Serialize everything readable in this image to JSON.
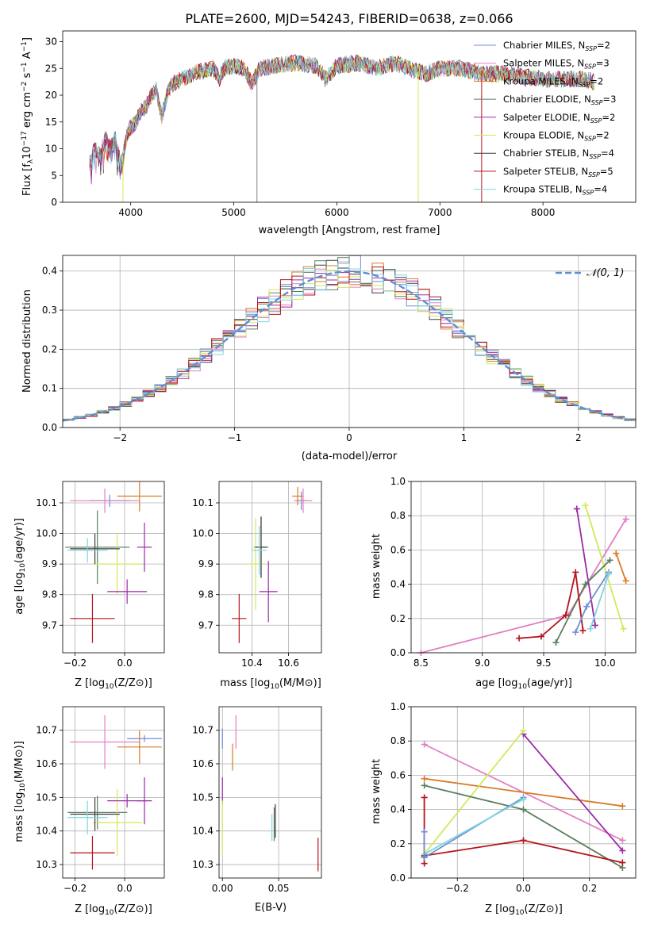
{
  "title": "PLATE=2600, MJD=54243, FIBERID=0638, z=0.066",
  "chart_data": [
    {
      "id": "spectrum",
      "type": "line",
      "xlabel": "wavelength [Angstrom, rest frame]",
      "ylabel": "Flux [f_λ 10^-17 erg cm^-2 s^-1 A^-1]",
      "xlim": [
        3340,
        8900
      ],
      "ylim": [
        0,
        32
      ],
      "xticks": [
        4000,
        5000,
        6000,
        7000,
        8000
      ],
      "yticks": [
        0,
        5,
        10,
        15,
        20,
        25,
        30
      ],
      "grid": false,
      "legend": "upper right",
      "anchors": [
        [
          3600,
          7
        ],
        [
          3650,
          10
        ],
        [
          3700,
          9
        ],
        [
          3760,
          12
        ],
        [
          3800,
          10
        ],
        [
          3850,
          12
        ],
        [
          3900,
          7
        ],
        [
          3930,
          9
        ],
        [
          3970,
          13
        ],
        [
          4000,
          14
        ],
        [
          4050,
          15
        ],
        [
          4100,
          17
        ],
        [
          4150,
          18
        ],
        [
          4200,
          20
        ],
        [
          4250,
          21
        ],
        [
          4300,
          16
        ],
        [
          4350,
          20
        ],
        [
          4400,
          22
        ],
        [
          4500,
          23
        ],
        [
          4600,
          24
        ],
        [
          4700,
          24.5
        ],
        [
          4800,
          25
        ],
        [
          4860,
          23
        ],
        [
          4900,
          25
        ],
        [
          5000,
          25.5
        ],
        [
          5100,
          25
        ],
        [
          5175,
          22
        ],
        [
          5250,
          25
        ],
        [
          5400,
          25.5
        ],
        [
          5600,
          26
        ],
        [
          5800,
          25.5
        ],
        [
          5890,
          23
        ],
        [
          6000,
          25.5
        ],
        [
          6200,
          26
        ],
        [
          6400,
          25
        ],
        [
          6563,
          26
        ],
        [
          6700,
          25
        ],
        [
          6870,
          24
        ],
        [
          7000,
          25
        ],
        [
          7200,
          25
        ],
        [
          7400,
          24
        ],
        [
          7600,
          24
        ],
        [
          7800,
          23.5
        ],
        [
          8000,
          23
        ],
        [
          8200,
          23
        ],
        [
          8400,
          23
        ],
        [
          8500,
          22.5
        ]
      ],
      "spikes": [
        {
          "x": 3925,
          "y": 0,
          "color": "#d4e85a"
        },
        {
          "x": 5225,
          "y": 0,
          "color": "#7f7f7f"
        },
        {
          "x": 6790,
          "y": 0,
          "color": "#d4e85a"
        },
        {
          "x": 7405,
          "y": 0,
          "color": "#b5131a"
        }
      ],
      "series": [
        {
          "name": "Chabrier MILES, N_SSP=2",
          "label_main": "Chabrier MILES, N",
          "label_sub": "SSP",
          "label_end": "=2",
          "color": "#6f8fd6"
        },
        {
          "name": "Salpeter MILES, N_SSP=3",
          "label_main": "Salpeter MILES, N",
          "label_sub": "SSP",
          "label_end": "=3",
          "color": "#e27fc2"
        },
        {
          "name": "Kroupa MILES, N_SSP=2",
          "label_main": "Kroupa MILES, N",
          "label_sub": "SSP",
          "label_end": "=2",
          "color": "#d97b27"
        },
        {
          "name": "Chabrier ELODIE, N_SSP=3",
          "label_main": "Chabrier ELODIE, N",
          "label_sub": "SSP",
          "label_end": "=3",
          "color": "#5b7e5e"
        },
        {
          "name": "Salpeter ELODIE, N_SSP=2",
          "label_main": "Salpeter ELODIE, N",
          "label_sub": "SSP",
          "label_end": "=2",
          "color": "#9b2aa8"
        },
        {
          "name": "Kroupa ELODIE, N_SSP=2",
          "label_main": "Kroupa ELODIE, N",
          "label_sub": "SSP",
          "label_end": "=2",
          "color": "#d4e85a"
        },
        {
          "name": "Chabrier STELIB, N_SSP=4",
          "label_main": "Chabrier STELIB, N",
          "label_sub": "SSP",
          "label_end": "=4",
          "color": "#3d3d3d"
        },
        {
          "name": "Salpeter STELIB, N_SSP=5",
          "label_main": "Salpeter STELIB, N",
          "label_sub": "SSP",
          "label_end": "=5",
          "color": "#b5131a"
        },
        {
          "name": "Kroupa STELIB, N_SSP=4",
          "label_main": "Kroupa STELIB, N",
          "label_sub": "SSP",
          "label_end": "=4",
          "color": "#7fd6df"
        }
      ]
    },
    {
      "id": "residuals",
      "type": "histogram",
      "xlabel": "(data-model)/error",
      "ylabel": "Normed distribution",
      "xlim": [
        -2.5,
        2.5
      ],
      "ylim": [
        0,
        0.44
      ],
      "xticks": [
        -2,
        -1,
        0,
        1,
        2
      ],
      "yticks": [
        0.0,
        0.1,
        0.2,
        0.3,
        0.4
      ],
      "grid": true,
      "legend": "upper right",
      "reference": {
        "name": "N(0,1)",
        "label": "𝒩(0, 1)",
        "color": "#5b8fd6",
        "mean": 0,
        "sigma": 1
      },
      "bin_width": 0.1
    },
    {
      "id": "age-vs-Z",
      "type": "errorbar",
      "xlabel_main": "Z [log",
      "xlabel_sub": "10",
      "xlabel_end": "(Z/Z⊙)]",
      "ylabel": "age [log10(age/yr)]",
      "xlim": [
        -0.25,
        0.16
      ],
      "ylim": [
        9.61,
        10.17
      ],
      "xticks": [
        -0.2,
        0.0
      ],
      "yticks": [
        9.7,
        9.8,
        9.9,
        10.0,
        10.1
      ],
      "grid": true,
      "points": [
        {
          "x": -0.06,
          "xerr": 0.08,
          "y": 10.107,
          "yerr": 0.02,
          "color": "#6f8fd6"
        },
        {
          "x": -0.08,
          "xerr": 0.14,
          "y": 10.107,
          "yerr": 0.04,
          "color": "#e27fc2"
        },
        {
          "x": 0.06,
          "xerr": 0.09,
          "y": 10.122,
          "yerr": 0.05,
          "color": "#d97b27"
        },
        {
          "x": -0.11,
          "xerr": 0.13,
          "y": 9.955,
          "yerr": 0.12,
          "color": "#5b7e5e"
        },
        {
          "x": 0.08,
          "xerr": 0.03,
          "y": 9.955,
          "yerr": 0.08,
          "color": "#9b2aa8"
        },
        {
          "x": -0.03,
          "xerr": 0.1,
          "y": 9.9,
          "yerr": 0.1,
          "color": "#d4e85a"
        },
        {
          "x": -0.12,
          "xerr": 0.1,
          "y": 9.95,
          "yerr": 0.05,
          "color": "#3d3d3d"
        },
        {
          "x": -0.13,
          "xerr": 0.09,
          "y": 9.722,
          "yerr": 0.08,
          "color": "#b5131a"
        },
        {
          "x": -0.15,
          "xerr": 0.08,
          "y": 9.945,
          "yerr": 0.04,
          "color": "#7fd6df"
        },
        {
          "x": 0.01,
          "xerr": 0.08,
          "y": 9.81,
          "yerr": 0.04,
          "color": "#9b2aa8"
        }
      ]
    },
    {
      "id": "age-vs-mass",
      "type": "errorbar",
      "xlabel_main": "mass [log",
      "xlabel_sub": "10",
      "xlabel_end": "(M/M⊙)]",
      "xlim": [
        10.22,
        10.78
      ],
      "ylim": [
        9.61,
        10.17
      ],
      "xticks": [
        10.4,
        10.6
      ],
      "yticks": [
        9.7,
        9.8,
        9.9,
        10.0,
        10.1
      ],
      "grid": true,
      "points": [
        {
          "x": 10.67,
          "xerr": 0.03,
          "y": 10.107,
          "yerr": 0.03,
          "color": "#6f8fd6"
        },
        {
          "x": 10.68,
          "xerr": 0.05,
          "y": 10.107,
          "yerr": 0.04,
          "color": "#e27fc2"
        },
        {
          "x": 10.65,
          "xerr": 0.03,
          "y": 10.122,
          "yerr": 0.03,
          "color": "#d97b27"
        },
        {
          "x": 10.45,
          "xerr": 0.04,
          "y": 9.955,
          "yerr": 0.1,
          "color": "#5b7e5e"
        },
        {
          "x": 10.49,
          "xerr": 0.05,
          "y": 9.81,
          "yerr": 0.1,
          "color": "#9b2aa8"
        },
        {
          "x": 10.42,
          "xerr": 0.05,
          "y": 9.9,
          "yerr": 0.15,
          "color": "#d4e85a"
        },
        {
          "x": 10.45,
          "xerr": 0.03,
          "y": 9.955,
          "yerr": 0.1,
          "color": "#3d3d3d"
        },
        {
          "x": 10.33,
          "xerr": 0.04,
          "y": 9.722,
          "yerr": 0.08,
          "color": "#b5131a"
        },
        {
          "x": 10.44,
          "xerr": 0.04,
          "y": 9.945,
          "yerr": 0.08,
          "color": "#7fd6df"
        }
      ]
    },
    {
      "id": "massweight-vs-age",
      "type": "line",
      "xlabel": "age [log10(age/yr)]",
      "ylabel": "mass weight",
      "xlim": [
        8.42,
        10.25
      ],
      "ylim": [
        0,
        1
      ],
      "xticks": [
        8.5,
        9.0,
        9.5,
        10.0
      ],
      "yticks": [
        0.0,
        0.2,
        0.4,
        0.6,
        0.8,
        1.0
      ],
      "grid": true,
      "series": [
        {
          "color": "#e27fc2",
          "points": [
            [
              8.5,
              0.0
            ],
            [
              9.7,
              0.22
            ],
            [
              10.17,
              0.78
            ]
          ]
        },
        {
          "color": "#d97b27",
          "points": [
            [
              10.09,
              0.58
            ],
            [
              10.17,
              0.42
            ]
          ]
        },
        {
          "color": "#9b2aa8",
          "points": [
            [
              9.77,
              0.84
            ],
            [
              9.92,
              0.16
            ]
          ]
        },
        {
          "color": "#d4e85a",
          "points": [
            [
              9.84,
              0.86
            ],
            [
              10.15,
              0.14
            ]
          ]
        },
        {
          "color": "#5b7e5e",
          "points": [
            [
              9.6,
              0.06
            ],
            [
              9.84,
              0.4
            ],
            [
              10.04,
              0.54
            ]
          ]
        },
        {
          "color": "#b5131a",
          "points": [
            [
              9.3,
              0.085
            ],
            [
              9.48,
              0.095
            ],
            [
              9.68,
              0.22
            ],
            [
              9.76,
              0.47
            ],
            [
              9.82,
              0.13
            ]
          ]
        },
        {
          "color": "#6f8fd6",
          "points": [
            [
              9.76,
              0.12
            ],
            [
              9.85,
              0.27
            ],
            [
              10.03,
              0.47
            ]
          ]
        },
        {
          "color": "#7fd6df",
          "points": [
            [
              9.88,
              0.14
            ],
            [
              10.03,
              0.46
            ]
          ]
        }
      ]
    },
    {
      "id": "mass-vs-Z",
      "type": "errorbar",
      "xlabel_main": "Z [log",
      "xlabel_sub": "10",
      "xlabel_end": "(Z/Z⊙)]",
      "ylabel": "mass [log10(M/M⊙)]",
      "xlim": [
        -0.25,
        0.16
      ],
      "ylim": [
        10.26,
        10.77
      ],
      "xticks": [
        -0.2,
        0.0
      ],
      "yticks": [
        10.3,
        10.4,
        10.5,
        10.6,
        10.7
      ],
      "grid": true,
      "points": [
        {
          "x": 0.08,
          "xerr": 0.07,
          "y": 10.675,
          "yerr": 0.01,
          "color": "#6f8fd6"
        },
        {
          "x": -0.08,
          "xerr": 0.14,
          "y": 10.665,
          "yerr": 0.08,
          "color": "#e27fc2"
        },
        {
          "x": 0.06,
          "xerr": 0.09,
          "y": 10.65,
          "yerr": 0.05,
          "color": "#d97b27"
        },
        {
          "x": -0.11,
          "xerr": 0.12,
          "y": 10.455,
          "yerr": 0.05,
          "color": "#5b7e5e"
        },
        {
          "x": 0.08,
          "xerr": 0.03,
          "y": 10.49,
          "yerr": 0.07,
          "color": "#9b2aa8"
        },
        {
          "x": -0.03,
          "xerr": 0.1,
          "y": 10.425,
          "yerr": 0.1,
          "color": "#d4e85a"
        },
        {
          "x": -0.12,
          "xerr": 0.1,
          "y": 10.45,
          "yerr": 0.05,
          "color": "#3d3d3d"
        },
        {
          "x": -0.13,
          "xerr": 0.09,
          "y": 10.335,
          "yerr": 0.05,
          "color": "#b5131a"
        },
        {
          "x": -0.15,
          "xerr": 0.08,
          "y": 10.44,
          "yerr": 0.05,
          "color": "#7fd6df"
        },
        {
          "x": 0.01,
          "xerr": 0.08,
          "y": 10.49,
          "yerr": 0.02,
          "color": "#9b2aa8"
        }
      ]
    },
    {
      "id": "mass-vs-ebv",
      "type": "errorbar",
      "xlabel": "E(B-V)",
      "xlim": [
        -0.003,
        0.088
      ],
      "ylim": [
        10.26,
        10.77
      ],
      "xticks": [
        0.0,
        0.05
      ],
      "yticks": [
        10.3,
        10.4,
        10.5,
        10.6,
        10.7
      ],
      "grid": true,
      "points": [
        {
          "x": 0.0,
          "y": 10.675,
          "yerr": 0.03,
          "color": "#6f8fd6"
        },
        {
          "x": 0.012,
          "y": 10.695,
          "yerr": 0.05,
          "color": "#e27fc2"
        },
        {
          "x": 0.009,
          "y": 10.62,
          "yerr": 0.04,
          "color": "#d97b27"
        },
        {
          "x": 0.046,
          "y": 10.42,
          "yerr": 0.05,
          "color": "#5b7e5e"
        },
        {
          "x": 0.0,
          "y": 10.52,
          "yerr": 0.04,
          "color": "#9b2aa8"
        },
        {
          "x": 0.0,
          "y": 10.41,
          "yerr": 0.08,
          "color": "#d4e85a"
        },
        {
          "x": 0.047,
          "y": 10.43,
          "yerr": 0.05,
          "color": "#3d3d3d"
        },
        {
          "x": 0.085,
          "y": 10.33,
          "yerr": 0.05,
          "color": "#b5131a"
        },
        {
          "x": 0.044,
          "y": 10.41,
          "yerr": 0.04,
          "color": "#7fd6df"
        }
      ]
    },
    {
      "id": "massweight-vs-Z",
      "type": "line",
      "xlabel_main": "Z [log",
      "xlabel_sub": "10",
      "xlabel_end": "(Z/Z⊙)]",
      "ylabel": "mass weight",
      "xlim": [
        -0.34,
        0.34
      ],
      "ylim": [
        0,
        1
      ],
      "xticks": [
        -0.2,
        0.0,
        0.2
      ],
      "yticks": [
        0.0,
        0.2,
        0.4,
        0.6,
        0.8,
        1.0
      ],
      "grid": true,
      "series": [
        {
          "color": "#e27fc2",
          "points": [
            [
              -0.3,
              0.78
            ],
            [
              0.3,
              0.22
            ]
          ]
        },
        {
          "color": "#d97b27",
          "points": [
            [
              -0.3,
              0.58
            ],
            [
              0.3,
              0.42
            ]
          ]
        },
        {
          "color": "#9b2aa8",
          "points": [
            [
              0.0,
              0.84
            ],
            [
              0.3,
              0.16
            ]
          ]
        },
        {
          "color": "#d4e85a",
          "points": [
            [
              -0.3,
              0.14
            ],
            [
              0.0,
              0.86
            ]
          ]
        },
        {
          "color": "#5b7e5e",
          "points": [
            [
              -0.3,
              0.54
            ],
            [
              0.0,
              0.4
            ],
            [
              0.3,
              0.06
            ]
          ]
        },
        {
          "color": "#b5131a",
          "points": [
            [
              -0.3,
              0.13
            ],
            [
              0.0,
              0.22
            ],
            [
              0.3,
              0.09
            ]
          ]
        },
        {
          "color": "#b5131a",
          "points": [
            [
              -0.3,
              0.085
            ],
            [
              -0.3,
              0.47
            ]
          ]
        },
        {
          "color": "#6f8fd6",
          "points": [
            [
              -0.3,
              0.12
            ],
            [
              0.0,
              0.47
            ]
          ]
        },
        {
          "color": "#7fd6df",
          "points": [
            [
              -0.3,
              0.14
            ],
            [
              0.0,
              0.46
            ]
          ]
        },
        {
          "color": "#6f8fd6",
          "points": [
            [
              -0.3,
              0.27
            ],
            [
              -0.3,
              0.12
            ]
          ]
        }
      ]
    }
  ],
  "age_ylabel_main": "age [log",
  "age_ylabel_sub": "10",
  "age_ylabel_end": "(age/yr)]",
  "mass_ylabel_main": "mass [log",
  "mass_ylabel_sub": "10",
  "mass_ylabel_end": "(M/M⊙)]",
  "mw_xlabel_main": "age [log",
  "mw_xlabel_sub": "10",
  "mw_xlabel_end": "(age/yr)]",
  "flux_ylabel_main": "Flux [f",
  "flux_ylabel_sub1": "λ",
  "flux_ylabel_mid": "10",
  "flux_ylabel_sup1": "−17",
  "flux_ylabel_mid2": " erg cm",
  "flux_ylabel_sup2": "−2",
  "flux_ylabel_mid3": " s",
  "flux_ylabel_sup3": "−1",
  "flux_ylabel_end": " A",
  "flux_ylabel_sup4": "−1",
  "flux_ylabel_close": "]"
}
